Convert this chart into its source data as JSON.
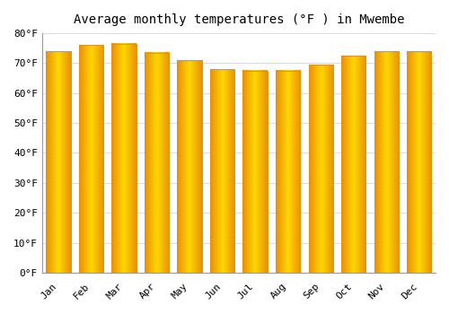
{
  "title": "Average monthly temperatures (°F ) in Mwembe",
  "months": [
    "Jan",
    "Feb",
    "Mar",
    "Apr",
    "May",
    "Jun",
    "Jul",
    "Aug",
    "Sep",
    "Oct",
    "Nov",
    "Dec"
  ],
  "values": [
    74,
    76,
    76.5,
    73.5,
    71,
    68,
    67.5,
    67.5,
    69.5,
    72.5,
    74,
    74
  ],
  "ylim": [
    0,
    80
  ],
  "yticks": [
    0,
    10,
    20,
    30,
    40,
    50,
    60,
    70,
    80
  ],
  "ytick_labels": [
    "0°F",
    "10°F",
    "20°F",
    "30°F",
    "40°F",
    "50°F",
    "60°F",
    "70°F",
    "80°F"
  ],
  "bar_color_center": "#FFD700",
  "bar_color_edge": "#E8900A",
  "background_color": "#FFFFFF",
  "grid_color": "#DDDDDD",
  "title_fontsize": 10,
  "tick_fontsize": 8
}
